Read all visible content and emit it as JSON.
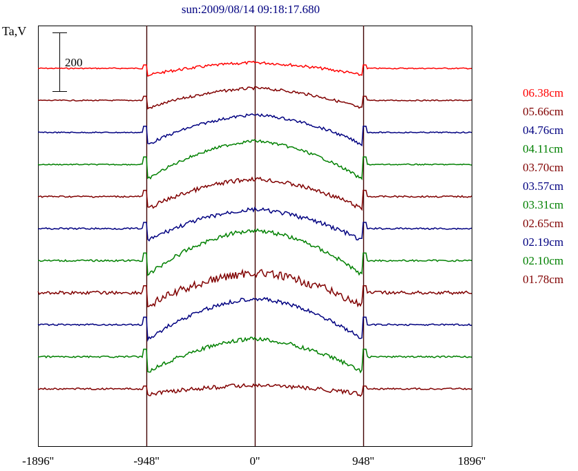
{
  "chart_data": {
    "type": "line",
    "title": "sun:2009/08/14 09:18:17.680",
    "ylabel": "Ta,V",
    "scale_bar_label": "200",
    "scale_bar_value": 200,
    "xlim": [
      -1896,
      1896
    ],
    "x_ticks": [
      -1896,
      -948,
      0,
      948,
      1896
    ],
    "x_tick_labels": [
      "-1896''",
      "-948''",
      "0''",
      "948''",
      "1896''"
    ],
    "vertical_markers": [
      -948,
      0,
      948
    ],
    "series": [
      {
        "name": "06.38cm",
        "color": "#ff0000",
        "dark": 0,
        "limb_dip": 10,
        "dome": 12,
        "noise": 2
      },
      {
        "name": "05.66cm",
        "color": "#800000",
        "dark": 0,
        "limb_dip": 12,
        "dome": 22,
        "noise": 2
      },
      {
        "name": "04.76cm",
        "color": "#000080",
        "dark": 0,
        "limb_dip": 18,
        "dome": 32,
        "noise": 2
      },
      {
        "name": "04.11cm",
        "color": "#008000",
        "dark": 0,
        "limb_dip": 22,
        "dome": 42,
        "noise": 2
      },
      {
        "name": "03.70cm",
        "color": "#800000",
        "dark": 0,
        "limb_dip": 18,
        "dome": 32,
        "noise": 3
      },
      {
        "name": "03.57cm",
        "color": "#000080",
        "dark": 0,
        "limb_dip": 18,
        "dome": 34,
        "noise": 3
      },
      {
        "name": "03.31cm",
        "color": "#008000",
        "dark": 0,
        "limb_dip": 22,
        "dome": 52,
        "noise": 3
      },
      {
        "name": "02.65cm",
        "color": "#800000",
        "dark": 0,
        "limb_dip": 20,
        "dome": 36,
        "noise": 6
      },
      {
        "name": "02.19cm",
        "color": "#000080",
        "dark": 0,
        "limb_dip": 22,
        "dome": 46,
        "noise": 3
      },
      {
        "name": "02.10cm",
        "color": "#008000",
        "dark": 0,
        "limb_dip": 22,
        "dome": 34,
        "noise": 3
      },
      {
        "name": "01.78cm",
        "color": "#800000",
        "dark": 0,
        "limb_dip": 8,
        "dome": 8,
        "noise": 3
      }
    ],
    "legend_position": "right",
    "grid": false
  }
}
